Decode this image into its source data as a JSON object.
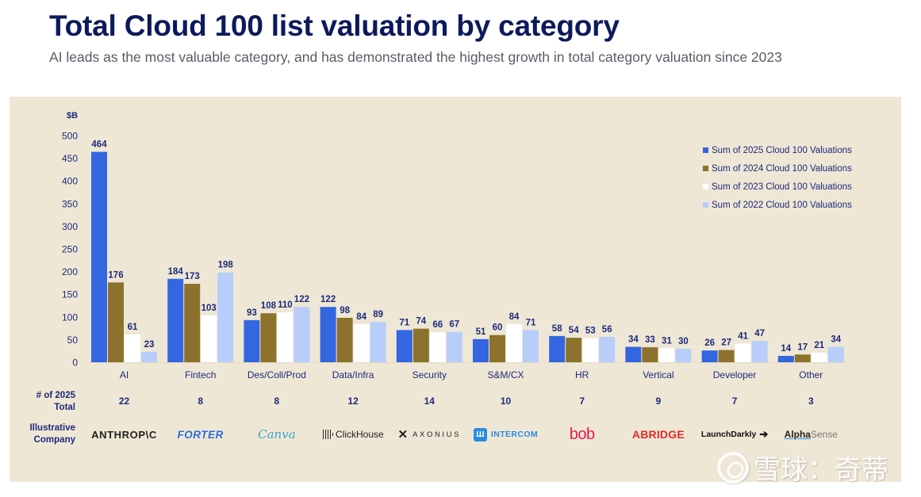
{
  "header": {
    "title": "Total Cloud 100 list valuation by category",
    "subtitle": "AI leads as the most valuable category, and has demonstrated the highest growth in total category valuation since 2023"
  },
  "chart_data": {
    "type": "bar",
    "title": "Total Cloud 100 list valuation by category",
    "ylabel": "$B",
    "xlabel": "",
    "ylim": [
      0,
      500
    ],
    "yticks": [
      0,
      50,
      100,
      150,
      200,
      250,
      300,
      350,
      400,
      450,
      500
    ],
    "grid": false,
    "legend_position": "top-right",
    "categories": [
      "AI",
      "Fintech",
      "Des/Coll/Prod",
      "Data/Infra",
      "Security",
      "S&M/CX",
      "HR",
      "Vertical",
      "Developer",
      "Other"
    ],
    "series": [
      {
        "name": "Sum of 2025 Cloud 100 Valuations",
        "color": "#3366e0",
        "values": [
          464,
          184,
          93,
          122,
          71,
          51,
          58,
          34,
          26,
          14
        ]
      },
      {
        "name": "Sum of 2024 Cloud 100 Valuations",
        "color": "#8c722c",
        "values": [
          176,
          173,
          108,
          98,
          74,
          60,
          54,
          33,
          27,
          17
        ]
      },
      {
        "name": "Sum of 2023 Cloud 100 Valuations",
        "color": "#ffffff",
        "values": [
          61,
          103,
          110,
          84,
          66,
          84,
          53,
          31,
          41,
          21
        ]
      },
      {
        "name": "Sum of 2022 Cloud 100 Valuations",
        "color": "#b8cdfa",
        "values": [
          23,
          198,
          122,
          89,
          67,
          71,
          56,
          30,
          47,
          34
        ]
      }
    ]
  },
  "table": {
    "count_label_line1": "# of 2025",
    "count_label_line2": "Total",
    "company_label_line1": "Illustrative",
    "company_label_line2": "Company",
    "counts": [
      "22",
      "8",
      "8",
      "12",
      "14",
      "10",
      "7",
      "9",
      "7",
      "3"
    ],
    "companies": [
      {
        "name": "ANTHROP\\C",
        "color": "#222222"
      },
      {
        "name": "FORTER",
        "color": "#2a6ed8"
      },
      {
        "name": "Canva",
        "color": "#3aa6c4"
      },
      {
        "name": "ClickHouse",
        "color": "#222222"
      },
      {
        "name": "AXONIUS",
        "color": "#222222"
      },
      {
        "name": "INTERCOM",
        "color": "#2a8ce0"
      },
      {
        "name": "bob",
        "color": "#e8194e"
      },
      {
        "name": "ABRIDGE",
        "color": "#e02b2b"
      },
      {
        "name": "LaunchDarkly",
        "color": "#111111"
      },
      {
        "name_bold": "Alpha",
        "name_light": "Sense",
        "color": "#222222"
      }
    ]
  },
  "colors": {
    "title": "#0c1a5c",
    "label": "#1c2a7a",
    "panel": "#efe7d6"
  },
  "watermark": {
    "text": "雪球：奇蒂"
  }
}
